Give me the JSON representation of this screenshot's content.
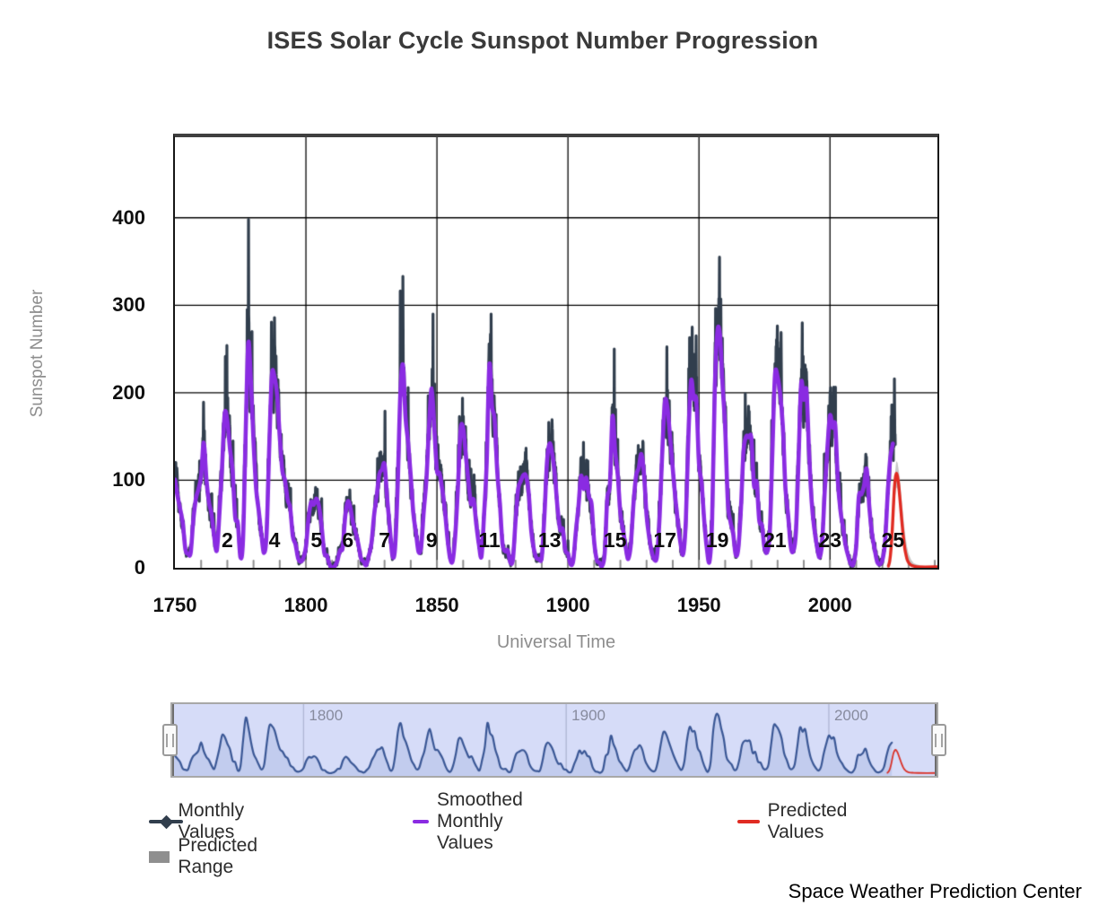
{
  "page": {
    "title": "ISES Solar Cycle Sunspot Number Progression",
    "credit": "Space Weather Prediction Center"
  },
  "chart_data": {
    "type": "line",
    "title": "ISES Solar Cycle Sunspot Number Progression",
    "xlabel": "Universal Time",
    "ylabel": "Sunspot Number",
    "xlim": [
      1750,
      2041
    ],
    "ylim": [
      0,
      492
    ],
    "grid": true,
    "legend_position": "bottom",
    "xticks": [
      1750,
      1800,
      1850,
      1900,
      1950,
      2000
    ],
    "yticks": [
      0,
      100,
      200,
      300,
      400
    ],
    "minor_ticks": {
      "start": 1760,
      "end": 2040,
      "step": 10
    },
    "cycle_label_value": 30,
    "cycle_labels": [
      {
        "label": "2",
        "year": 1770
      },
      {
        "label": "4",
        "year": 1788
      },
      {
        "label": "5",
        "year": 1804
      },
      {
        "label": "6",
        "year": 1816
      },
      {
        "label": "7",
        "year": 1830
      },
      {
        "label": "9",
        "year": 1848
      },
      {
        "label": "11",
        "year": 1870
      },
      {
        "label": "13",
        "year": 1893
      },
      {
        "label": "15",
        "year": 1918
      },
      {
        "label": "17",
        "year": 1937
      },
      {
        "label": "19",
        "year": 1957
      },
      {
        "label": "21",
        "year": 1979
      },
      {
        "label": "23",
        "year": 2000
      },
      {
        "label": "25",
        "year": 2024
      }
    ],
    "series": [
      {
        "name": "Monthly Values",
        "color": "#313e4d",
        "derived_from": "Smoothed Monthly Values",
        "noise": {
          "base": 6,
          "scale": 0.3,
          "persist": 0.6
        },
        "notable_monthly_peaks": [
          [
            1769.8,
            254
          ],
          [
            1778.1,
            398
          ],
          [
            1788.0,
            286
          ],
          [
            1837.0,
            333
          ],
          [
            1848.5,
            290
          ],
          [
            1870.7,
            290
          ],
          [
            1917.7,
            250
          ],
          [
            1947.4,
            275
          ],
          [
            1957.8,
            355
          ],
          [
            1989.4,
            280
          ],
          [
            2024.6,
            216
          ]
        ],
        "x_end": 2024.95
      },
      {
        "name": "Smoothed Monthly Values",
        "color": "#8a2be2",
        "x_start": 1750,
        "x_step": 1,
        "values": [
          101,
          82,
          67,
          51,
          21,
          16,
          17,
          54,
          79,
          90,
          105,
          143,
          102,
          75,
          61,
          35,
          20,
          63,
          116,
          176,
          168,
          136,
          111,
          58,
          51,
          12,
          33,
          154,
          257,
          212,
          144,
          90,
          65,
          38,
          17,
          40,
          139,
          220,
          218,
          197,
          150,
          111,
          100,
          78,
          68,
          36,
          27,
          11,
          7,
          11,
          24,
          57,
          75,
          72,
          79,
          70,
          47,
          17,
          14,
          4,
          0,
          2,
          8,
          20,
          23,
          59,
          76,
          68,
          51,
          40,
          27,
          11,
          7,
          3,
          14,
          28,
          60,
          82,
          107,
          112,
          118,
          79,
          46,
          14,
          22,
          92,
          197,
          232,
          172,
          143,
          105,
          62,
          40,
          18,
          25,
          66,
          102,
          163,
          205,
          159,
          111,
          108,
          90,
          67,
          34,
          11,
          8,
          38,
          91,
          157,
          160,
          129,
          99,
          73,
          78,
          50,
          27,
          13,
          62,
          121,
          232,
          185,
          169,
          110,
          74,
          28,
          19,
          20,
          6,
          10,
          54,
          90,
          99,
          106,
          105,
          86,
          42,
          21,
          11,
          10,
          12,
          59,
          121,
          142,
          130,
          106,
          69,
          44,
          44,
          20,
          16,
          4,
          8,
          41,
          70,
          105,
          90,
          103,
          81,
          73,
          30,
          9,
          6,
          2,
          16,
          79,
          95,
          173,
          134,
          106,
          62,
          44,
          24,
          10,
          27,
          73,
          105,
          114,
          130,
          108,
          60,
          35,
          18,
          9,
          14,
          60,
          133,
          190,
          182,
          148,
          113,
          79,
          51,
          27,
          16,
          55,
          154,
          214,
          193,
          191,
          119,
          97,
          54,
          22,
          7,
          53,
          200,
          269,
          266,
          209,
          159,
          76,
          53,
          40,
          15,
          22,
          67,
          133,
          150,
          149,
          148,
          94,
          98,
          54,
          49,
          23,
          18,
          39,
          131,
          220,
          218,
          198,
          162,
          91,
          61,
          25,
          19,
          41,
          124,
          211,
          192,
          203,
          133,
          76,
          45,
          25,
          12,
          29,
          88,
          136,
          174,
          160,
          163,
          99,
          65,
          46,
          25,
          13,
          4,
          5,
          25,
          81,
          84,
          94,
          113,
          70,
          40,
          22,
          7,
          4,
          9,
          29,
          83,
          125,
          142
        ]
      },
      {
        "name": "Predicted Values",
        "color": "#e02b22",
        "points": [
          [
            2022.3,
            2
          ],
          [
            2022.8,
            8
          ],
          [
            2023.3,
            22
          ],
          [
            2023.8,
            45
          ],
          [
            2024.2,
            70
          ],
          [
            2024.6,
            92
          ],
          [
            2025.0,
            104
          ],
          [
            2025.4,
            108
          ],
          [
            2025.8,
            104
          ],
          [
            2026.2,
            95
          ],
          [
            2026.6,
            82
          ],
          [
            2027.0,
            68
          ],
          [
            2027.4,
            54
          ],
          [
            2027.8,
            41
          ],
          [
            2028.2,
            30
          ],
          [
            2028.6,
            21
          ],
          [
            2029.0,
            15
          ],
          [
            2029.5,
            9
          ],
          [
            2030.0,
            6
          ],
          [
            2031.0,
            3
          ],
          [
            2032.0,
            2
          ],
          [
            2034.0,
            1
          ],
          [
            2041.0,
            1
          ]
        ]
      },
      {
        "name": "Predicted Range",
        "color": "#8f8f8f",
        "band_fill": "#c7c7c7",
        "band": [
          [
            2022.6,
            0,
            16
          ],
          [
            2023.2,
            12,
            34
          ],
          [
            2023.8,
            33,
            58
          ],
          [
            2024.3,
            58,
            86
          ],
          [
            2024.8,
            80,
            108
          ],
          [
            2025.3,
            92,
            122
          ],
          [
            2025.8,
            90,
            120
          ],
          [
            2026.3,
            80,
            110
          ],
          [
            2026.8,
            66,
            96
          ],
          [
            2027.3,
            52,
            80
          ],
          [
            2027.8,
            38,
            64
          ],
          [
            2028.3,
            26,
            48
          ],
          [
            2028.8,
            17,
            35
          ],
          [
            2029.4,
            9,
            24
          ],
          [
            2030,
            5,
            16
          ],
          [
            2031,
            2,
            9
          ],
          [
            2032,
            1,
            5
          ],
          [
            2034,
            0,
            3
          ]
        ]
      }
    ]
  },
  "slider": {
    "y_max": 295,
    "bg_color": "#d6dcf8",
    "fill_color": "#c2ccee",
    "line_color": "#3a5795",
    "predicted_color": "#d93229",
    "gridline_color": "#aeb5d4",
    "labels": [
      {
        "text": "1800",
        "year": 1800
      },
      {
        "text": "1900",
        "year": 1900
      },
      {
        "text": "2000",
        "year": 2000
      }
    ]
  }
}
